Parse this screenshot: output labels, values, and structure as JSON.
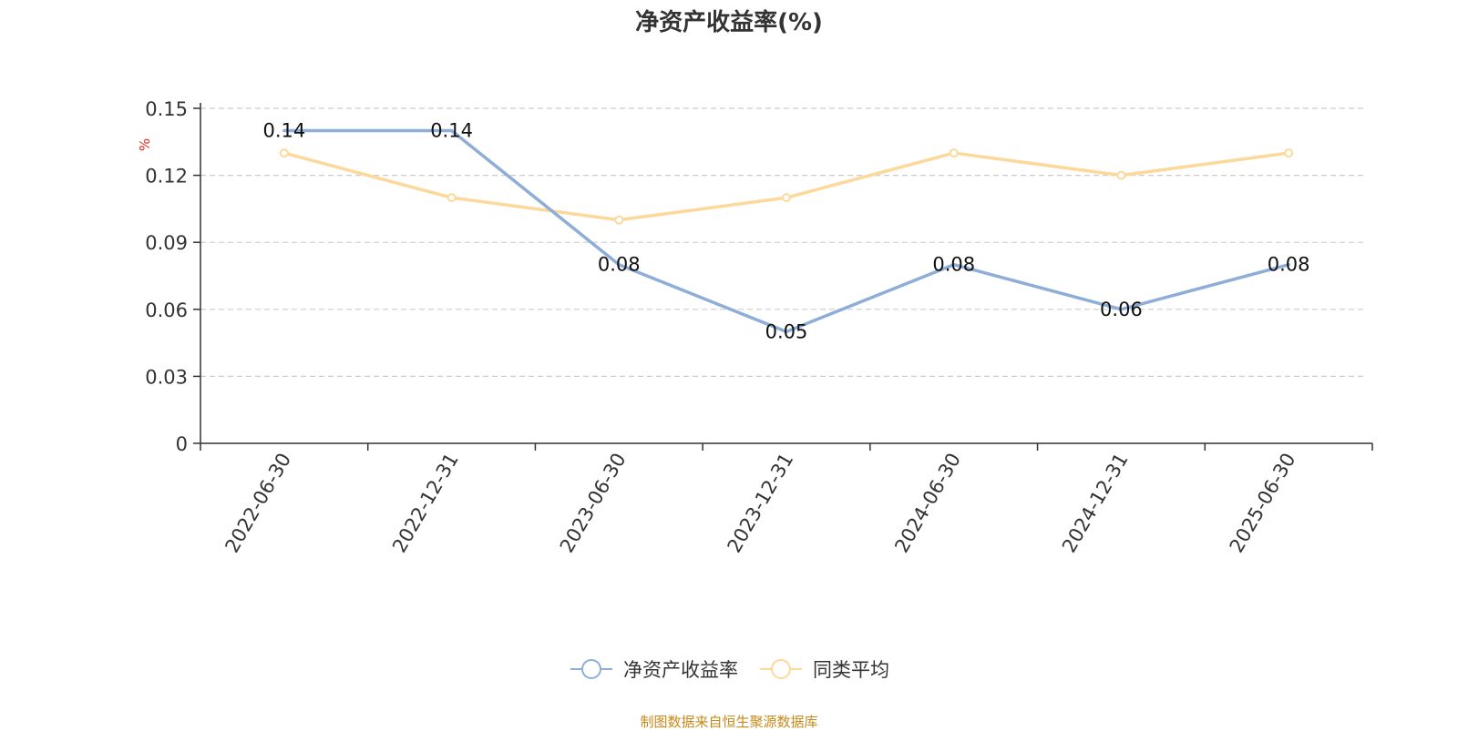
{
  "title": "净资产收益率(%)",
  "source_note": "制图数据来自恒生聚源数据库",
  "chart_data": {
    "type": "line",
    "title": "净资产收益率(%)",
    "ylabel": "%",
    "xlabel": "",
    "categories": [
      "2022-06-30",
      "2022-12-31",
      "2023-06-30",
      "2023-12-31",
      "2024-06-30",
      "2024-12-31",
      "2025-06-30"
    ],
    "ylim": [
      0,
      0.15
    ],
    "yticks": [
      0,
      0.03,
      0.06,
      0.09,
      0.12,
      0.15
    ],
    "ytick_labels": [
      "0",
      "0.03",
      "0.06",
      "0.09",
      "0.12",
      "0.15"
    ],
    "grid": true,
    "legend_position": "bottom",
    "series": [
      {
        "name": "净资产收益率",
        "color": "#8eaed8",
        "values": [
          0.14,
          0.14,
          0.08,
          0.05,
          0.08,
          0.06,
          0.08
        ],
        "data_labels": [
          "0.14",
          "0.14",
          "0.08",
          "0.05",
          "0.08",
          "0.06",
          "0.08"
        ]
      },
      {
        "name": "同类平均",
        "color": "#fcd99a",
        "values": [
          0.13,
          0.11,
          0.1,
          0.11,
          0.13,
          0.12,
          0.13
        ]
      }
    ]
  }
}
